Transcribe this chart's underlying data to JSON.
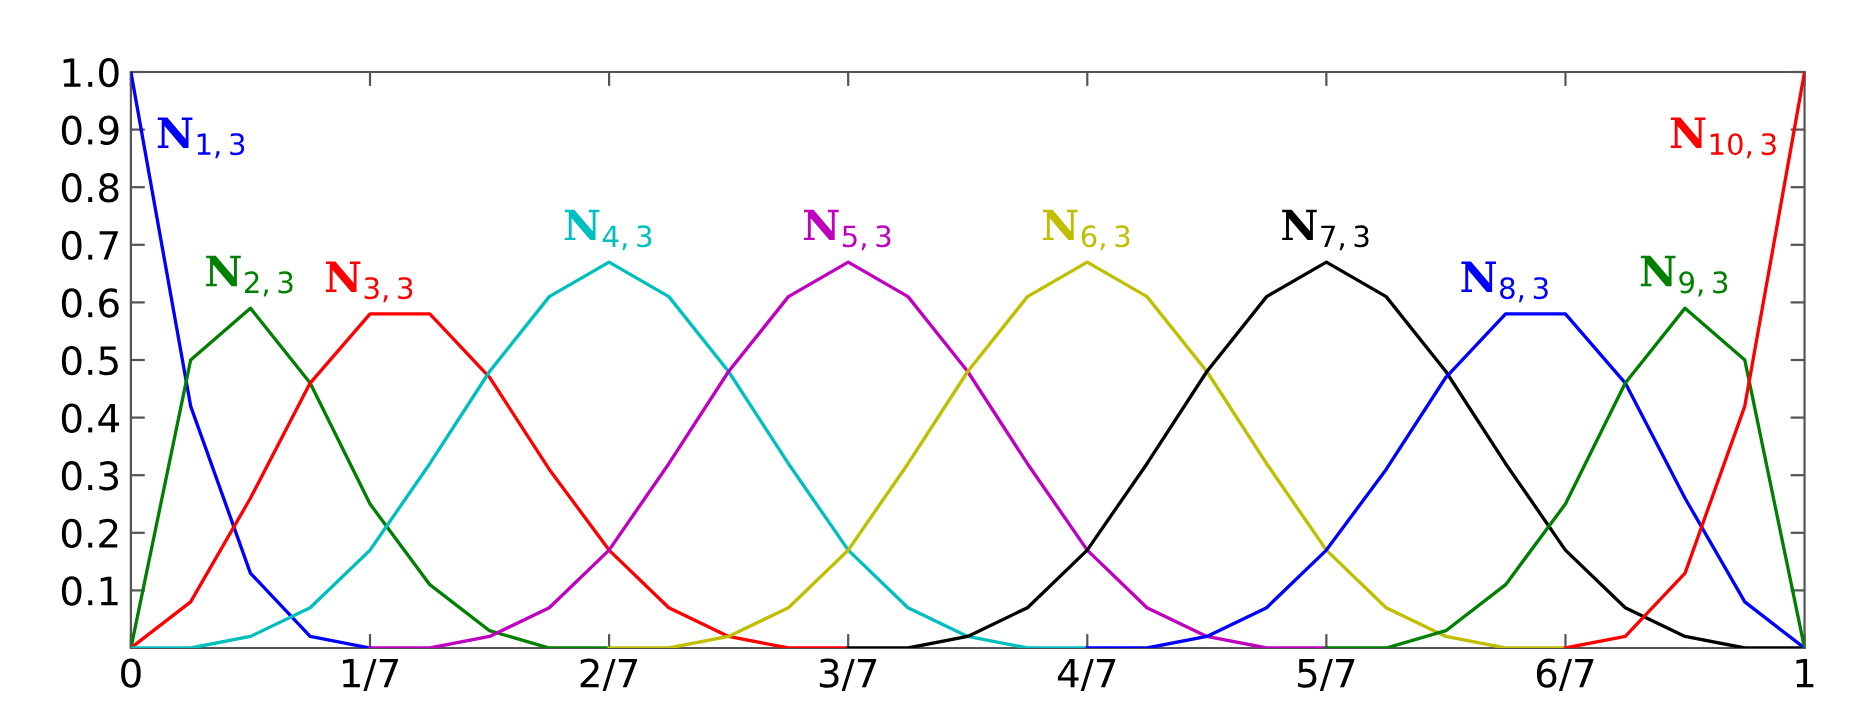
{
  "chart_data": {
    "type": "line",
    "x": [
      0,
      0.0357,
      0.0714,
      0.1071,
      0.1429,
      0.1786,
      0.2143,
      0.25,
      0.2857,
      0.3214,
      0.3571,
      0.3929,
      0.4286,
      0.4643,
      0.5,
      0.5357,
      0.5714,
      0.6071,
      0.6429,
      0.6786,
      0.7143,
      0.75,
      0.7857,
      0.8214,
      0.8571,
      0.8929,
      0.9286,
      0.9643,
      1
    ],
    "series": [
      {
        "name": "N$_{1,3}$",
        "color": "#0000ff",
        "values": [
          1,
          0.42,
          0.13,
          0.02,
          0,
          null,
          null,
          null,
          null,
          null,
          null,
          null,
          null,
          null,
          null,
          null,
          null,
          null,
          null,
          null,
          null,
          null,
          null,
          null,
          null,
          null,
          null,
          null,
          null
        ]
      },
      {
        "name": "N$_{2,3}$",
        "color": "#008000",
        "values": [
          0,
          0.5,
          0.59,
          0.46,
          0.25,
          0.11,
          0.03,
          0,
          0,
          null,
          null,
          null,
          null,
          null,
          null,
          null,
          null,
          null,
          null,
          null,
          null,
          null,
          null,
          null,
          null,
          null,
          null,
          null,
          null
        ]
      },
      {
        "name": "N$_{3,3}$",
        "color": "#ff0000",
        "values": [
          0,
          0.08,
          0.26,
          0.46,
          0.58,
          0.58,
          0.47,
          0.31,
          0.17,
          0.07,
          0.02,
          0,
          0,
          null,
          null,
          null,
          null,
          null,
          null,
          null,
          null,
          null,
          null,
          null,
          null,
          null,
          null,
          null,
          null
        ]
      },
      {
        "name": "N$_{4,3}$",
        "color": "#00bfbf",
        "values": [
          0,
          0,
          0.02,
          0.07,
          0.17,
          0.32,
          0.48,
          0.61,
          0.67,
          0.61,
          0.48,
          0.32,
          0.17,
          0.07,
          0.02,
          0,
          0,
          null,
          null,
          null,
          null,
          null,
          null,
          null,
          null,
          null,
          null,
          null,
          null
        ]
      },
      {
        "name": "N$_{5,3}$",
        "color": "#bf00bf",
        "values": [
          null,
          null,
          null,
          null,
          0,
          0,
          0.02,
          0.07,
          0.17,
          0.32,
          0.48,
          0.61,
          0.67,
          0.61,
          0.48,
          0.32,
          0.17,
          0.07,
          0.02,
          0,
          0,
          null,
          null,
          null,
          null,
          null,
          null,
          null,
          null
        ]
      },
      {
        "name": "N$_{6,3}$",
        "color": "#bfbf00",
        "values": [
          null,
          null,
          null,
          null,
          null,
          null,
          null,
          null,
          0,
          0,
          0.02,
          0.07,
          0.17,
          0.32,
          0.48,
          0.61,
          0.67,
          0.61,
          0.48,
          0.32,
          0.17,
          0.07,
          0.02,
          0,
          0,
          null,
          null,
          null,
          null
        ]
      },
      {
        "name": "N$_{7,3}$",
        "color": "#000000",
        "values": [
          null,
          null,
          null,
          null,
          null,
          null,
          null,
          null,
          null,
          null,
          null,
          null,
          0,
          0,
          0.02,
          0.07,
          0.17,
          0.32,
          0.48,
          0.61,
          0.67,
          0.61,
          0.48,
          0.32,
          0.17,
          0.07,
          0.02,
          0,
          0
        ]
      },
      {
        "name": "N$_{8,3}$",
        "color": "#0000ff",
        "values": [
          null,
          null,
          null,
          null,
          null,
          null,
          null,
          null,
          null,
          null,
          null,
          null,
          null,
          null,
          null,
          null,
          0,
          0,
          0.02,
          0.07,
          0.17,
          0.31,
          0.47,
          0.58,
          0.58,
          0.46,
          0.26,
          0.08,
          0
        ]
      },
      {
        "name": "N$_{9,3}$",
        "color": "#008000",
        "values": [
          null,
          null,
          null,
          null,
          null,
          null,
          null,
          null,
          null,
          null,
          null,
          null,
          null,
          null,
          null,
          null,
          null,
          null,
          null,
          null,
          0,
          0,
          0.03,
          0.11,
          0.25,
          0.46,
          0.59,
          0.5,
          0
        ]
      },
      {
        "name": "N$_{10,3}$",
        "color": "#ff0000",
        "values": [
          null,
          null,
          null,
          null,
          null,
          null,
          null,
          null,
          null,
          null,
          null,
          null,
          null,
          null,
          null,
          null,
          null,
          null,
          null,
          null,
          null,
          null,
          null,
          null,
          0,
          0.02,
          0.13,
          0.42,
          1
        ]
      }
    ],
    "xlim": [
      0,
      1
    ],
    "ylim": [
      0,
      1
    ],
    "xticks": [
      0,
      {
        "value": 0.142857,
        "label": "1/7"
      },
      {
        "value": 0.285714,
        "label": "2/7"
      },
      {
        "value": 0.428571,
        "label": "3/7"
      },
      {
        "value": 0.571429,
        "label": "4/7"
      },
      {
        "value": 0.714286,
        "label": "5/7"
      },
      {
        "value": 0.857143,
        "label": "6/7"
      },
      1
    ],
    "yticks": [
      0.1,
      0.2,
      0.3,
      0.4,
      0.5,
      0.6,
      0.7,
      0.8,
      0.9,
      {
        "value": 1,
        "label": "1.0"
      }
    ],
    "grid": false,
    "legend": false,
    "marker": "none",
    "line_style": "solid"
  }
}
